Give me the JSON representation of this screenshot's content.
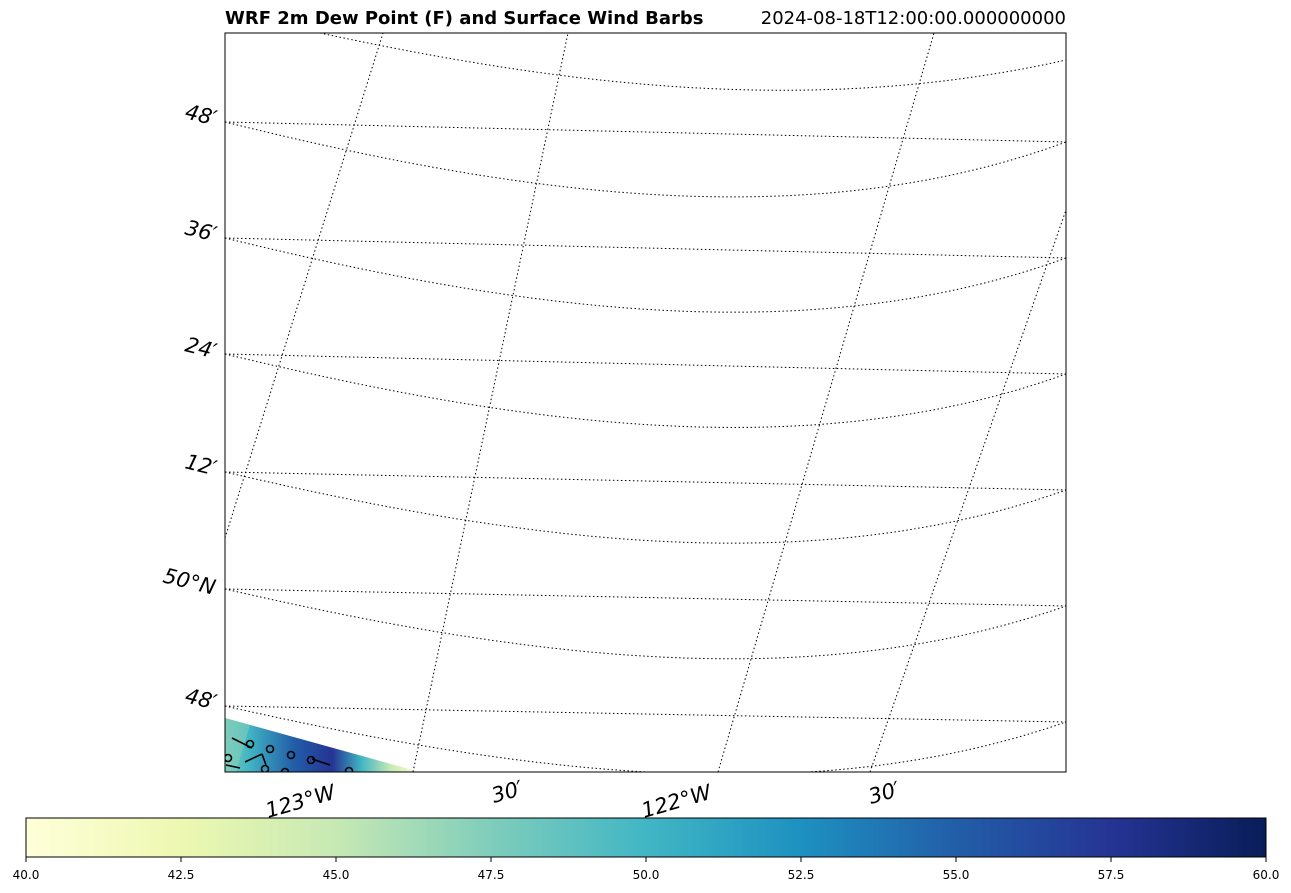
{
  "map": {
    "title": "WRF 2m Dew Point (F) and Surface Wind Barbs",
    "valid_time": "2024-08-18T12:00:00.000000000",
    "latitude_labels": [
      "48′",
      "36′",
      "24′",
      "12′",
      "50°N",
      "48′"
    ],
    "longitude_labels": [
      "123°W",
      "30′",
      "122°W",
      "30′"
    ],
    "field": "2m dew point",
    "units": "F",
    "overlay": "surface wind barbs",
    "gridlines": "dotted"
  },
  "colorbar": {
    "colormap": "YlGnBu",
    "min": 40.0,
    "max": 60.0,
    "tick_labels": [
      "40.0",
      "42.5",
      "45.0",
      "47.5",
      "50.0",
      "52.5",
      "55.0",
      "57.5",
      "60.0"
    ],
    "colors": [
      "#ffffd9",
      "#edf8b1",
      "#c7e9b4",
      "#7fcdbb",
      "#41b6c4",
      "#1d91c0",
      "#225ea8",
      "#253494",
      "#081d58"
    ]
  }
}
